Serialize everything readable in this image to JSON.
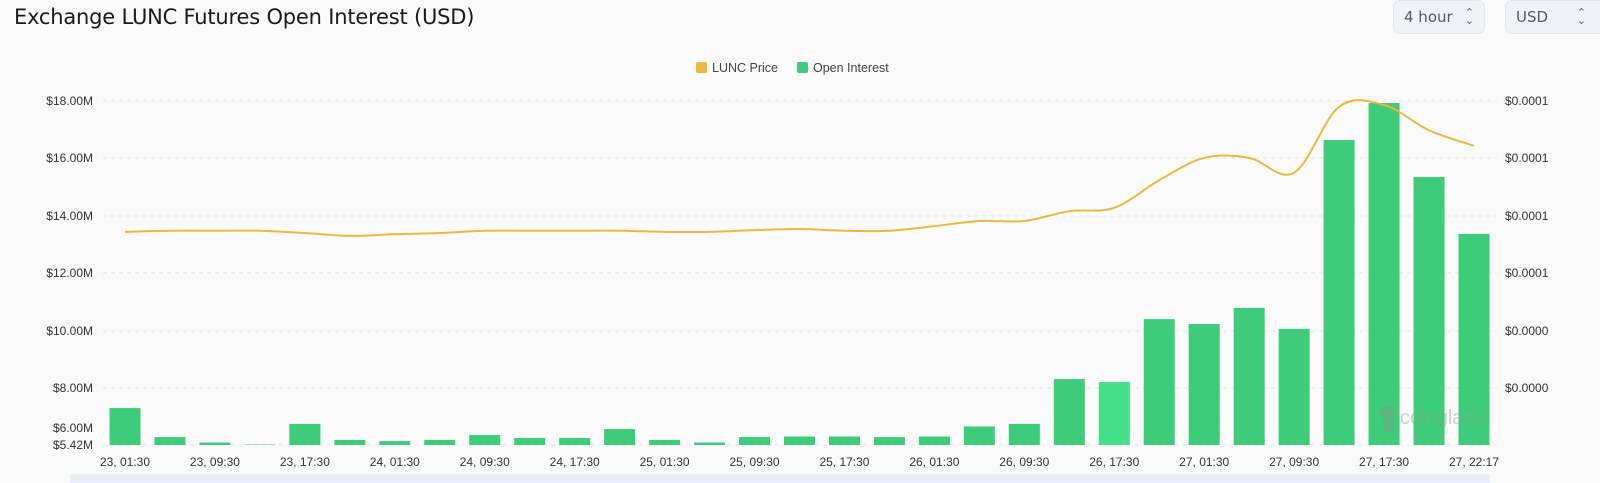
{
  "header": {
    "title": "Exchange LUNC Futures Open Interest (USD)",
    "interval_select": "4 hour",
    "currency_select": "USD"
  },
  "watermark": "coinglass",
  "colors": {
    "price": "#f0b73f",
    "open_interest": "#3ecc7b",
    "open_interest_highlight": "#45df88"
  },
  "chart_data": {
    "type": "bar+line",
    "title": "Exchange LUNC Futures Open Interest (USD)",
    "legend": {
      "position": "top-center",
      "entries": [
        "LUNC Price",
        "Open Interest"
      ]
    },
    "x_tick_labels": [
      "23, 01:30",
      "23, 09:30",
      "23, 17:30",
      "24, 01:30",
      "24, 09:30",
      "24, 17:30",
      "25, 01:30",
      "25, 09:30",
      "25, 17:30",
      "26, 01:30",
      "26, 09:30",
      "26, 17:30",
      "27, 01:30",
      "27, 09:30",
      "27, 17:30",
      "27, 22:17"
    ],
    "left_axis": {
      "unit": "USD",
      "tick_labels": [
        "$18.00M",
        "$16.00M",
        "$14.00M",
        "$12.00M",
        "$10.00M",
        "$8.00M",
        "$6.00M",
        "$5.42M"
      ],
      "range": [
        5.42,
        18.0
      ]
    },
    "right_axis": {
      "tick_labels": [
        "$0.0001",
        "$0.0001",
        "$0.0001",
        "$0.0001",
        "$0.0000",
        "$0.0000"
      ]
    },
    "grid": true,
    "series": [
      {
        "name": "Open Interest",
        "type": "bar",
        "axis": "left",
        "unit": "USD millions",
        "values": [
          7.3,
          6.29,
          6.1,
          6.03,
          6.75,
          6.19,
          6.15,
          6.19,
          6.36,
          6.26,
          6.26,
          6.57,
          6.19,
          6.1,
          6.29,
          6.31,
          6.31,
          6.29,
          6.31,
          6.66,
          6.75,
          8.31,
          8.21,
          10.4,
          10.23,
          10.79,
          10.06,
          16.64,
          17.93,
          15.35,
          13.37
        ]
      },
      {
        "name": "LUNC Price",
        "type": "line",
        "axis": "right",
        "unit": "USD",
        "values": [
          7.72e-05,
          7.74e-05,
          7.74e-05,
          7.74e-05,
          7.7e-05,
          7.65e-05,
          7.68e-05,
          7.7e-05,
          7.74e-05,
          7.74e-05,
          7.74e-05,
          7.74e-05,
          7.72e-05,
          7.72e-05,
          7.75e-05,
          7.77e-05,
          7.74e-05,
          7.74e-05,
          7.82e-05,
          7.91e-05,
          7.91e-05,
          8.08e-05,
          8.14e-05,
          8.62e-05,
          9.01e-05,
          9.01e-05,
          8.75e-05,
          9.9e-05,
          9.93e-05,
          9.49e-05,
          9.22e-05
        ]
      }
    ]
  }
}
